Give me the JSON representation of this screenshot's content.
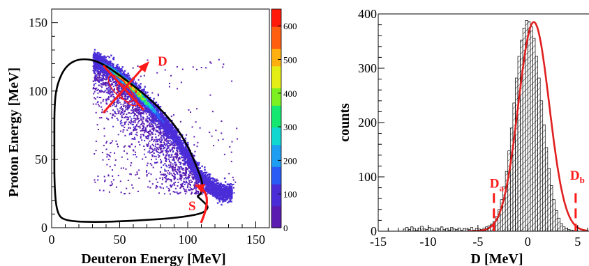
{
  "chart_data": [
    {
      "type": "heatmap",
      "title": "",
      "xlabel": "Deuteron Energy [MeV]",
      "ylabel": "Proton Energy [MeV]",
      "xlim": [
        0,
        160
      ],
      "ylim": [
        0,
        160
      ],
      "x_ticks": [
        "0",
        "50",
        "100",
        "150"
      ],
      "y_ticks": [
        "0",
        "50",
        "100",
        "150"
      ],
      "colorbar": {
        "range": [
          0,
          650
        ],
        "ticks": [
          "0",
          "100",
          "200",
          "300",
          "400",
          "500",
          "600"
        ],
        "colors": [
          "#5b1bb0",
          "#4b2dd8",
          "#2a5cf5",
          "#1e9ef0",
          "#10d8d0",
          "#14e870",
          "#7cf020",
          "#e4ee14",
          "#ffb010",
          "#ff5e10",
          "#ff1a0a"
        ]
      },
      "kinematic_curve": [
        [
          107,
          23
        ],
        [
          114,
          17
        ],
        [
          115,
          14
        ],
        [
          110,
          10
        ],
        [
          90,
          7
        ],
        [
          60,
          5
        ],
        [
          30,
          4
        ],
        [
          10,
          5
        ],
        [
          4,
          10
        ],
        [
          2,
          30
        ],
        [
          2,
          60
        ],
        [
          2,
          90
        ],
        [
          4,
          105
        ],
        [
          10,
          118
        ],
        [
          20,
          124
        ],
        [
          35,
          122
        ],
        [
          55,
          108
        ],
        [
          75,
          92
        ],
        [
          90,
          76
        ],
        [
          100,
          60
        ],
        [
          106,
          46
        ],
        [
          110,
          36
        ],
        [
          111,
          30
        ],
        [
          110,
          25
        ],
        [
          107,
          23
        ]
      ],
      "ridge": [
        [
          30,
          124
        ],
        [
          45,
          115
        ],
        [
          60,
          102
        ],
        [
          75,
          86
        ],
        [
          90,
          68
        ],
        [
          100,
          52
        ],
        [
          110,
          36
        ],
        [
          122,
          27
        ],
        [
          132,
          26
        ]
      ],
      "annotations": [
        {
          "label": "D",
          "color": "#ff0000"
        },
        {
          "label": "S",
          "color": "#ff0000"
        }
      ]
    },
    {
      "type": "bar",
      "title": "",
      "xlabel": "D [MeV]",
      "ylabel": "counts",
      "xlim": [
        -15,
        6
      ],
      "ylim": [
        0,
        400
      ],
      "x_ticks": [
        "-15",
        "-10",
        "-5",
        "0",
        "5"
      ],
      "y_ticks": [
        "0",
        "100",
        "200",
        "300",
        "400"
      ],
      "bin_width": 0.25,
      "x": [
        -12.5,
        -12.25,
        -12,
        -11.75,
        -11.5,
        -11.25,
        -11,
        -10.75,
        -10.5,
        -10.25,
        -10,
        -9.75,
        -9.5,
        -9.25,
        -9,
        -8.75,
        -8.5,
        -8.25,
        -8,
        -7.75,
        -7.5,
        -7.25,
        -7,
        -6.75,
        -6.5,
        -6.25,
        -6,
        -5.75,
        -5.5,
        -5.25,
        -5,
        -4.75,
        -4.5,
        -4.25,
        -4,
        -3.75,
        -3.5,
        -3.25,
        -3,
        -2.75,
        -2.5,
        -2.25,
        -2,
        -1.75,
        -1.5,
        -1.25,
        -1,
        -0.75,
        -0.5,
        -0.25,
        0,
        0.25,
        0.5,
        0.75,
        1,
        1.25,
        1.5,
        1.75,
        2,
        2.25,
        2.5,
        2.75,
        3,
        3.25,
        3.5,
        3.75,
        4,
        4.25,
        4.5,
        4.75,
        5,
        5.25,
        5.5,
        5.75
      ],
      "values": [
        4,
        7,
        3,
        8,
        5,
        2,
        6,
        9,
        4,
        3,
        7,
        5,
        2,
        6,
        4,
        8,
        3,
        5,
        2,
        7,
        4,
        3,
        6,
        2,
        5,
        4,
        3,
        7,
        2,
        5,
        4,
        3,
        6,
        8,
        10,
        13,
        18,
        27,
        40,
        58,
        82,
        110,
        148,
        190,
        236,
        282,
        322,
        352,
        374,
        388,
        386,
        376,
        355,
        322,
        282,
        240,
        196,
        154,
        116,
        84,
        58,
        38,
        24,
        14,
        8,
        5,
        3,
        2,
        1,
        1,
        0,
        0,
        0,
        0
      ],
      "fit_curve": {
        "type": "gaussian",
        "amplitude": 385,
        "mean": 0.6,
        "sigma": 1.55,
        "color": "#e02020"
      },
      "annotations": [
        {
          "label": "D",
          "sub": "a",
          "x": -3.4,
          "color": "#ff0000"
        },
        {
          "label": "D",
          "sub": "b",
          "x": 4.8,
          "color": "#ff0000"
        }
      ]
    }
  ]
}
